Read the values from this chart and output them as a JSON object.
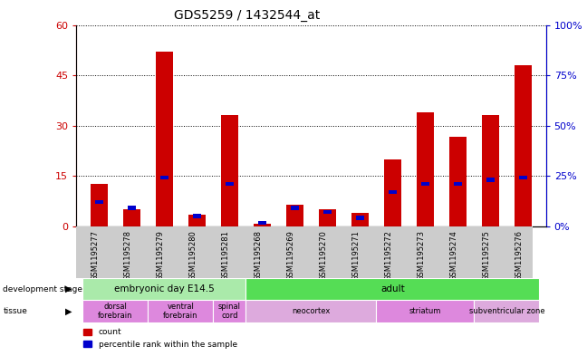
{
  "title": "GDS5259 / 1432544_at",
  "samples": [
    "GSM1195277",
    "GSM1195278",
    "GSM1195279",
    "GSM1195280",
    "GSM1195281",
    "GSM1195268",
    "GSM1195269",
    "GSM1195270",
    "GSM1195271",
    "GSM1195272",
    "GSM1195273",
    "GSM1195274",
    "GSM1195275",
    "GSM1195276"
  ],
  "count_values": [
    12.5,
    5.0,
    52.0,
    3.5,
    33.0,
    0.8,
    6.5,
    5.0,
    4.0,
    20.0,
    34.0,
    26.5,
    33.0,
    48.0
  ],
  "percentile_values": [
    13.0,
    10.0,
    25.0,
    6.0,
    22.0,
    2.5,
    10.0,
    8.0,
    5.0,
    18.0,
    22.0,
    22.0,
    24.0,
    25.0
  ],
  "count_color": "#cc0000",
  "percentile_color": "#0000cc",
  "ylim_left": [
    0,
    60
  ],
  "ylim_right": [
    0,
    100
  ],
  "yticks_left": [
    0,
    15,
    30,
    45,
    60
  ],
  "ytick_labels_left": [
    "0",
    "15",
    "30",
    "45",
    "60"
  ],
  "yticks_right": [
    0,
    25,
    50,
    75,
    100
  ],
  "ytick_labels_right": [
    "0%",
    "25%",
    "50%",
    "75%",
    "100%"
  ],
  "dev_stage_groups": [
    {
      "label": "embryonic day E14.5",
      "start": 0,
      "end": 5,
      "color": "#aaeaaa"
    },
    {
      "label": "adult",
      "start": 5,
      "end": 14,
      "color": "#55dd55"
    }
  ],
  "tissue_groups": [
    {
      "label": "dorsal\nforebrain",
      "start": 0,
      "end": 2,
      "color": "#dd88dd"
    },
    {
      "label": "ventral\nforebrain",
      "start": 2,
      "end": 4,
      "color": "#dd88dd"
    },
    {
      "label": "spinal\ncord",
      "start": 4,
      "end": 5,
      "color": "#dd88dd"
    },
    {
      "label": "neocortex",
      "start": 5,
      "end": 9,
      "color": "#ddaadd"
    },
    {
      "label": "striatum",
      "start": 9,
      "end": 12,
      "color": "#dd88dd"
    },
    {
      "label": "subventricular zone",
      "start": 12,
      "end": 14,
      "color": "#ddaadd"
    }
  ],
  "background_color": "#ffffff",
  "plot_bg_color": "#ffffff",
  "tick_bg_color": "#cccccc"
}
